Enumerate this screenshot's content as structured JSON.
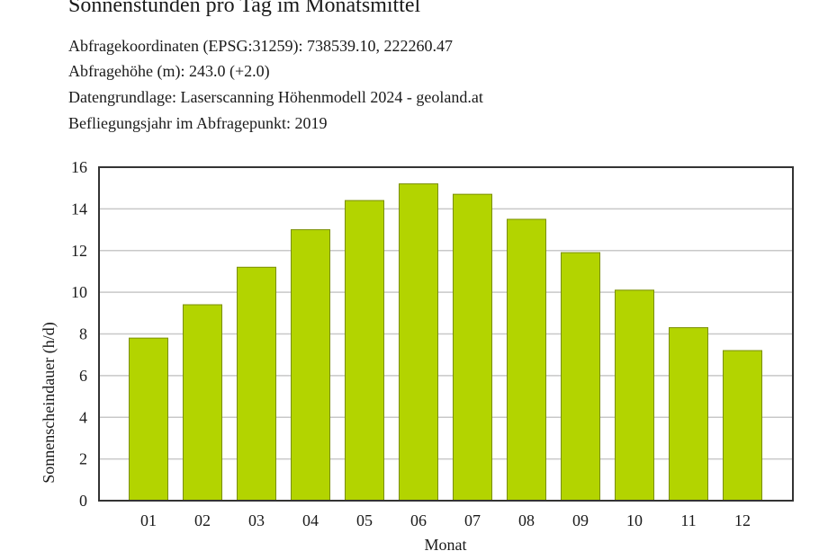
{
  "header": {
    "title": "Sonnenstunden pro Tag im Monatsmittel",
    "lines": [
      "Abfragekoordinaten (EPSG:31259): 738539.10, 222260.47",
      "Abfragehöhe (m): 243.0 (+2.0)",
      "Datengrundlage: Laserscanning Höhenmodell 2024 - geoland.at",
      "Befliegungsjahr im Abfragepunkt: 2019"
    ]
  },
  "chart_data": {
    "type": "bar",
    "categories": [
      "01",
      "02",
      "03",
      "04",
      "05",
      "06",
      "07",
      "08",
      "09",
      "10",
      "11",
      "12"
    ],
    "values": [
      7.8,
      9.4,
      11.2,
      13.0,
      14.4,
      15.2,
      14.7,
      13.5,
      11.9,
      10.1,
      8.3,
      7.2
    ],
    "xlabel": "Monat",
    "ylabel": "Sonnenscheindauer (h/d)",
    "ylim": [
      0,
      16
    ],
    "yticks": [
      0,
      2,
      4,
      6,
      8,
      10,
      12,
      14,
      16
    ],
    "grid": true,
    "bar_color": "#b3d400",
    "bar_edge_color": "#7a8f00"
  }
}
